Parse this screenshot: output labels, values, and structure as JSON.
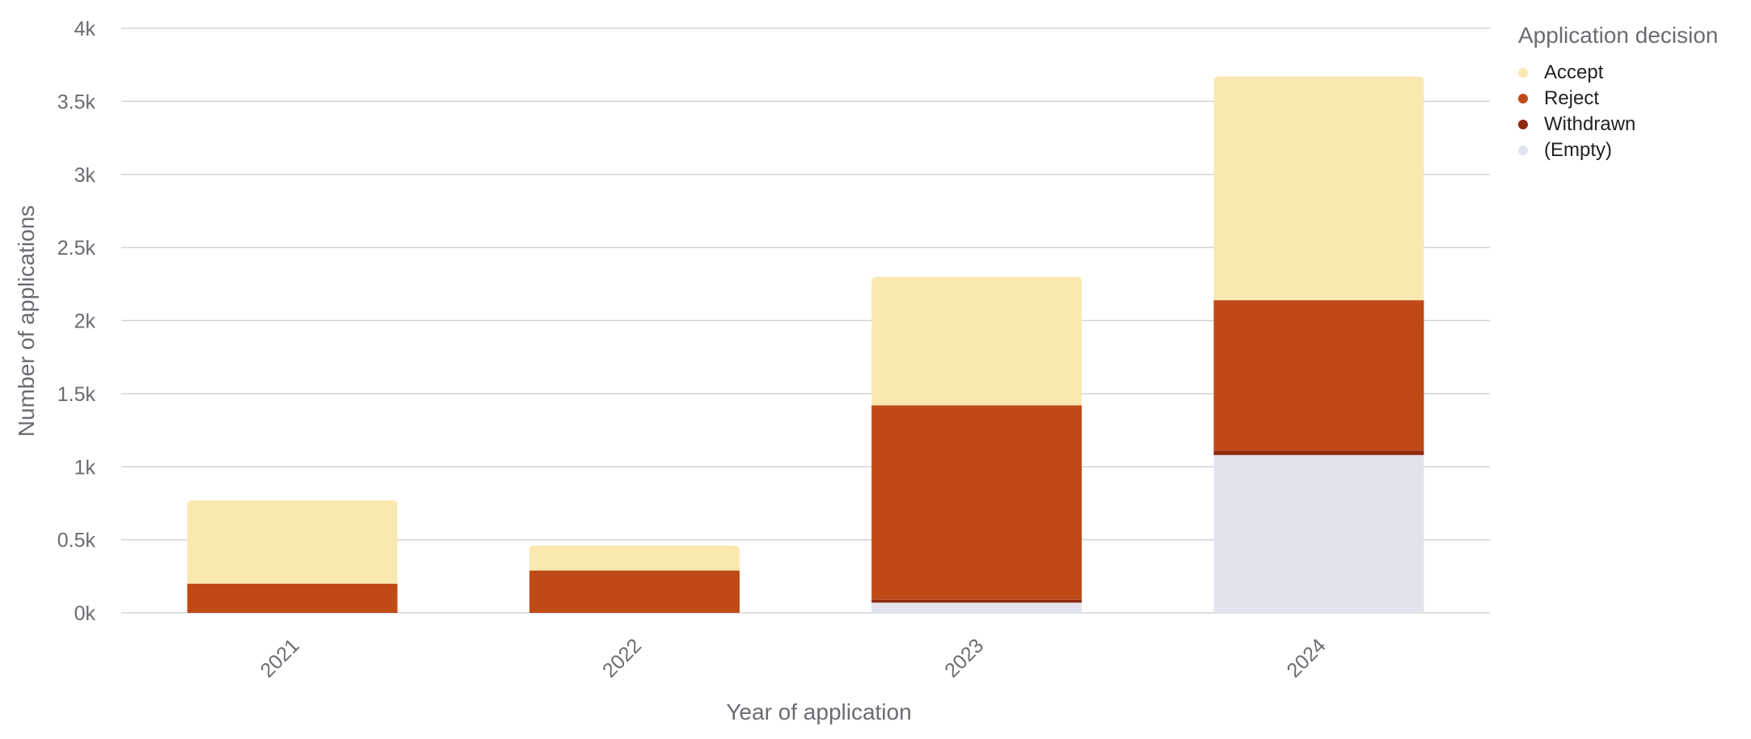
{
  "chart_data": {
    "type": "bar",
    "stacked": true,
    "categories": [
      "2021",
      "2022",
      "2023",
      "2024"
    ],
    "series": [
      {
        "name": "(Empty)",
        "color": "#e1e4ec",
        "values": [
          0,
          0,
          70,
          1080
        ]
      },
      {
        "name": "Withdrawn",
        "color": "#8f2a10",
        "values": [
          0,
          0,
          20,
          30
        ]
      },
      {
        "name": "Reject",
        "color": "#c04a17",
        "values": [
          200,
          290,
          1330,
          1030
        ]
      },
      {
        "name": "Accept",
        "color": "#fae8b1",
        "values": [
          570,
          170,
          880,
          1530
        ]
      }
    ],
    "xlabel": "Year of application",
    "ylabel": "Number of applications",
    "ylim": [
      0,
      4000
    ],
    "yticks": [
      0,
      500,
      1000,
      1500,
      2000,
      2500,
      3000,
      3500,
      4000
    ],
    "ytick_labels": [
      "0k",
      "0.5k",
      "1k",
      "1.5k",
      "2k",
      "2.5k",
      "3k",
      "3.5k",
      "4k"
    ],
    "grid": true,
    "legend": {
      "title": "Application decision",
      "position": "right",
      "items": [
        {
          "label": "Accept",
          "color": "#fae8b1"
        },
        {
          "label": "Reject",
          "color": "#c04a17"
        },
        {
          "label": "Withdrawn",
          "color": "#8f2a10"
        },
        {
          "label": "(Empty)",
          "color": "#e1e4ec"
        }
      ]
    }
  }
}
